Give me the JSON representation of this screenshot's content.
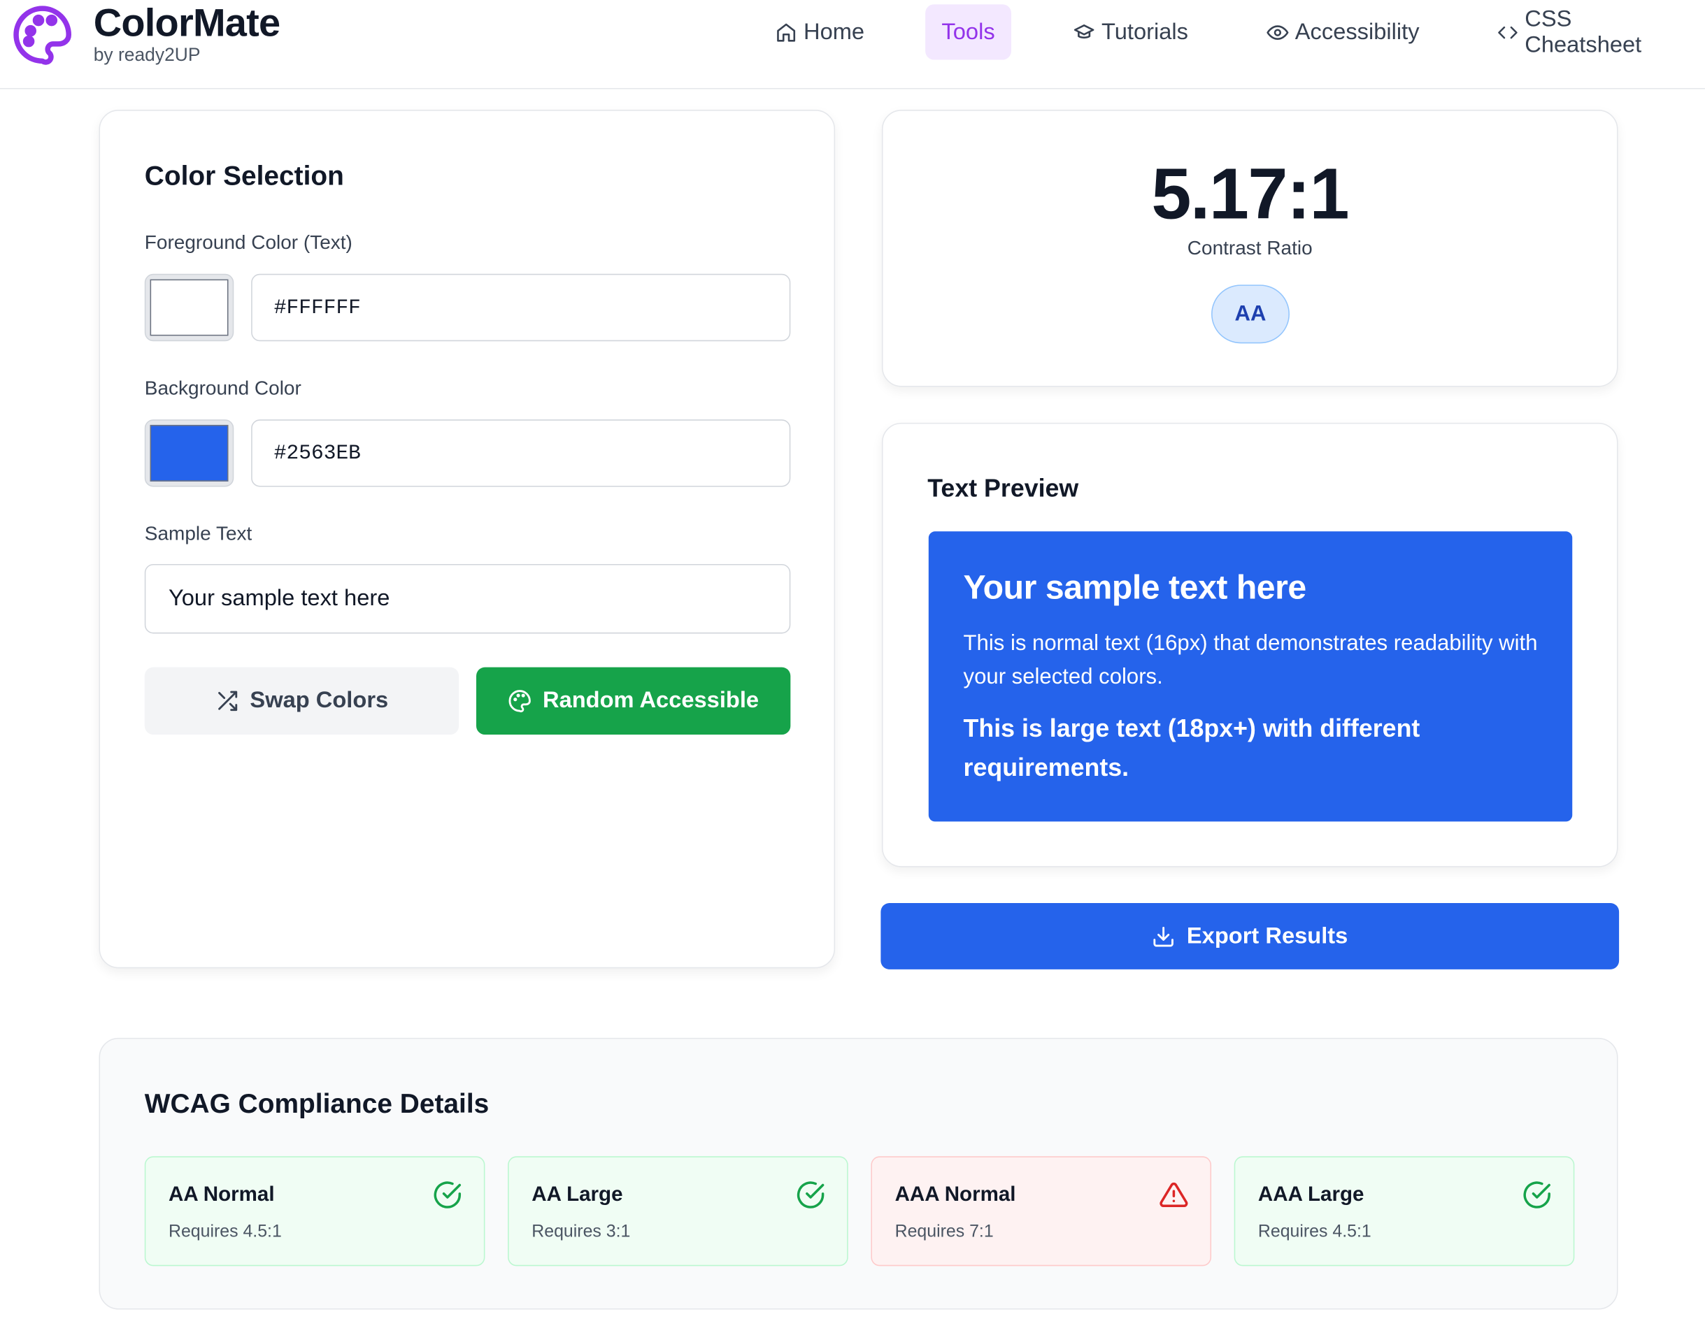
{
  "app": {
    "name": "ColorMate",
    "byline": "by ready2UP"
  },
  "nav": {
    "items": [
      {
        "label": "Home",
        "icon": "home-icon"
      },
      {
        "label": "Tools",
        "icon": "",
        "active": true
      },
      {
        "label": "Tutorials",
        "icon": "graduation-cap-icon"
      },
      {
        "label": "Accessibility",
        "icon": "eye-icon"
      },
      {
        "label": "CSS Cheatsheet",
        "icon": "code-icon"
      }
    ]
  },
  "selection": {
    "title": "Color Selection",
    "foreground_label": "Foreground Color (Text)",
    "foreground_value": "#FFFFFF",
    "background_label": "Background Color",
    "background_value": "#2563EB",
    "sample_label": "Sample Text",
    "sample_value": "Your sample text here",
    "swap_label": "Swap Colors",
    "random_label": "Random Accessible"
  },
  "result": {
    "ratio": "5.17:1",
    "ratio_label": "Contrast Ratio",
    "badge": "AA"
  },
  "preview": {
    "title": "Text Preview",
    "heading": "Your sample text here",
    "normal": "This is normal text (16px) that demonstrates readability with your selected colors.",
    "large": "This is large text (18px+) with different requirements."
  },
  "export_label": "Export Results",
  "wcag": {
    "title": "WCAG Compliance Details",
    "items": [
      {
        "title": "AA Normal",
        "req": "Requires 4.5:1",
        "status": "pass"
      },
      {
        "title": "AA Large",
        "req": "Requires 3:1",
        "status": "pass"
      },
      {
        "title": "AAA Normal",
        "req": "Requires 7:1",
        "status": "fail"
      },
      {
        "title": "AAA Large",
        "req": "Requires 4.5:1",
        "status": "pass"
      }
    ]
  },
  "colors": {
    "accent": "#9333ea",
    "primary": "#2563eb",
    "success": "#16a34a",
    "danger": "#dc2626",
    "foreground_swatch": "#FFFFFF",
    "background_swatch": "#2563EB"
  }
}
